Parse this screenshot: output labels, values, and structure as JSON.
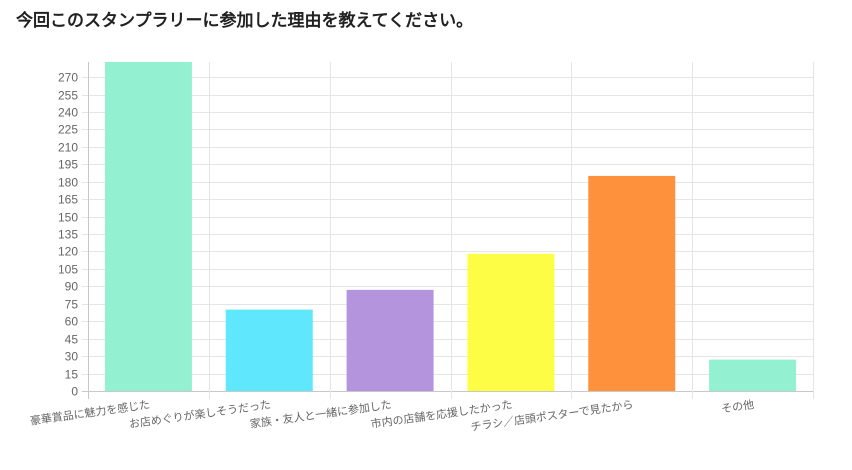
{
  "chart_data": {
    "type": "bar",
    "title": "今回このスタンプラリーに参加した理由を教えてください。",
    "xlabel": "",
    "ylabel": "",
    "categories": [
      "豪華賞品に魅力を感じた",
      "お店めぐりが楽しそうだった",
      "家族・友人と一緒に参加した",
      "市内の店舗を応援したかった",
      "チラシ／店頭ポスターで見たから",
      "その他"
    ],
    "values": [
      283,
      70,
      87,
      118,
      185,
      27
    ],
    "colors": [
      "#93f1d1",
      "#5fe7fd",
      "#b594de",
      "#fefd45",
      "#fd913c",
      "#93f1d1"
    ],
    "ylim": [
      0,
      283
    ],
    "yticks": [
      0,
      15,
      30,
      45,
      60,
      75,
      90,
      105,
      120,
      135,
      150,
      165,
      180,
      195,
      210,
      225,
      240,
      255,
      270
    ],
    "grid": true,
    "legend": "none"
  }
}
